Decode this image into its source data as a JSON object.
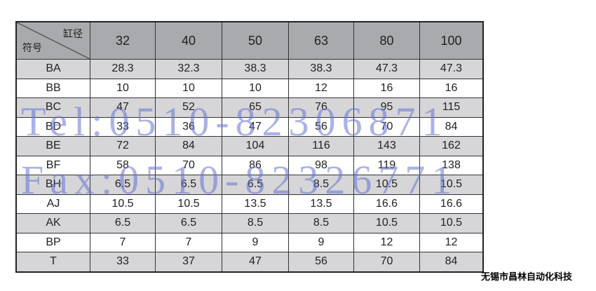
{
  "table": {
    "corner_top": "缸径",
    "corner_bottom": "符号",
    "columns": [
      "32",
      "40",
      "50",
      "63",
      "80",
      "100"
    ],
    "rows": [
      {
        "label": "BA",
        "values": [
          "28.3",
          "32.3",
          "38.3",
          "38.3",
          "47.3",
          "47.3"
        ]
      },
      {
        "label": "BB",
        "values": [
          "10",
          "10",
          "10",
          "12",
          "16",
          "16"
        ]
      },
      {
        "label": "BC",
        "values": [
          "47",
          "52",
          "65",
          "76",
          "95",
          "115"
        ]
      },
      {
        "label": "BD",
        "values": [
          "33",
          "36",
          "47",
          "56",
          "70",
          "84"
        ]
      },
      {
        "label": "BE",
        "values": [
          "72",
          "84",
          "104",
          "116",
          "143",
          "162"
        ]
      },
      {
        "label": "BF",
        "values": [
          "58",
          "70",
          "86",
          "98",
          "119",
          "138"
        ]
      },
      {
        "label": "BH",
        "values": [
          "6.5",
          "6.5",
          "6.5",
          "8.5",
          "10.5",
          "10.5"
        ]
      },
      {
        "label": "AJ",
        "values": [
          "10.5",
          "10.5",
          "13.5",
          "13.5",
          "16.6",
          "16.6"
        ]
      },
      {
        "label": "AK",
        "values": [
          "6.5",
          "6.5",
          "8.5",
          "8.5",
          "10.5",
          "10.5"
        ]
      },
      {
        "label": "BP",
        "values": [
          "7",
          "7",
          "9",
          "9",
          "12",
          "12"
        ]
      },
      {
        "label": "T",
        "values": [
          "33",
          "37",
          "47",
          "56",
          "70",
          "84"
        ]
      }
    ]
  },
  "watermark": {
    "tel": "Tel:0510-82306871",
    "fax": "Fax:0510-82326771",
    "color": "#6473d2"
  },
  "company": "无锡市昌林自动化科技"
}
